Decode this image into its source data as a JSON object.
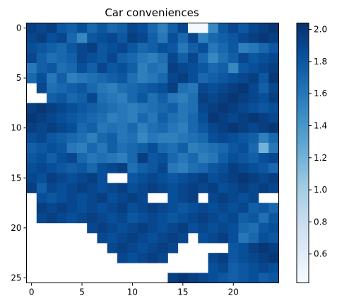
{
  "chart_data": {
    "type": "heatmap",
    "title": "Car conveniences",
    "xlabel": "",
    "ylabel": "",
    "rows": 26,
    "cols": 25,
    "x_ticks": [
      0,
      5,
      10,
      15,
      20
    ],
    "y_ticks": [
      0,
      5,
      10,
      15,
      20,
      25
    ],
    "colorbar": {
      "min": 0.42,
      "max": 2.04,
      "ticks": [
        0.6,
        0.8,
        1.0,
        1.2,
        1.4,
        1.6,
        1.8,
        2.0
      ],
      "tick_labels": [
        "0.6",
        "0.8",
        "1.0",
        "1.2",
        "1.4",
        "1.6",
        "1.8",
        "2.0"
      ],
      "colormap": "Blues",
      "low_color": "#f7fbff",
      "high_color": "#08306b"
    },
    "missing_value_color": "#ffffff",
    "grid": false,
    "values": [
      [
        1.95,
        1.9,
        1.95,
        1.8,
        1.75,
        1.85,
        1.7,
        1.8,
        1.7,
        1.75,
        1.9,
        1.85,
        1.7,
        1.55,
        1.75,
        1.9,
        0.45,
        0.45,
        1.5,
        1.8,
        1.9,
        1.8,
        1.9,
        1.95,
        2.0
      ],
      [
        1.9,
        1.95,
        1.85,
        1.9,
        1.7,
        1.5,
        1.8,
        1.85,
        1.9,
        1.8,
        1.95,
        1.9,
        1.75,
        1.6,
        1.85,
        1.7,
        1.9,
        1.55,
        1.7,
        1.75,
        1.8,
        1.9,
        1.95,
        2.0,
        1.95
      ],
      [
        1.85,
        1.8,
        1.75,
        1.7,
        1.8,
        1.9,
        1.95,
        1.8,
        1.85,
        1.9,
        1.8,
        1.7,
        1.75,
        1.85,
        1.8,
        1.6,
        1.75,
        1.85,
        1.6,
        1.7,
        1.8,
        1.55,
        1.6,
        1.7,
        1.8
      ],
      [
        1.9,
        1.75,
        1.65,
        1.7,
        1.75,
        1.9,
        1.85,
        1.8,
        1.9,
        1.75,
        1.7,
        1.6,
        1.55,
        1.65,
        1.9,
        1.75,
        1.9,
        1.7,
        1.5,
        1.65,
        1.75,
        1.9,
        1.8,
        1.85,
        1.9
      ],
      [
        1.6,
        1.75,
        1.8,
        1.65,
        1.7,
        1.85,
        1.75,
        1.9,
        1.8,
        1.85,
        1.75,
        1.55,
        1.65,
        1.6,
        1.95,
        1.9,
        1.85,
        1.8,
        1.7,
        1.75,
        1.5,
        1.8,
        1.85,
        1.9,
        1.95
      ],
      [
        1.7,
        1.85,
        1.6,
        1.75,
        1.55,
        1.6,
        1.65,
        1.7,
        1.75,
        1.8,
        1.65,
        1.55,
        1.6,
        1.7,
        1.9,
        1.95,
        1.85,
        1.7,
        1.75,
        1.8,
        1.85,
        1.9,
        1.95,
        1.8,
        2.0
      ],
      [
        null,
        1.9,
        1.65,
        1.7,
        1.75,
        1.8,
        1.7,
        1.6,
        1.55,
        1.65,
        1.7,
        1.75,
        1.8,
        1.85,
        1.95,
        1.65,
        1.6,
        1.9,
        1.85,
        1.9,
        1.95,
        2.0,
        1.9,
        1.75,
        1.9
      ],
      [
        null,
        null,
        1.75,
        1.8,
        1.7,
        1.75,
        1.9,
        1.65,
        1.6,
        1.55,
        1.7,
        1.8,
        1.65,
        1.75,
        1.6,
        1.55,
        1.65,
        1.95,
        1.9,
        1.95,
        2.0,
        1.95,
        1.9,
        1.85,
        1.95
      ],
      [
        1.95,
        2.0,
        1.95,
        1.9,
        1.85,
        1.8,
        1.75,
        1.7,
        1.65,
        1.6,
        1.55,
        1.6,
        1.65,
        1.7,
        1.75,
        1.6,
        1.65,
        1.9,
        1.95,
        2.0,
        1.95,
        1.9,
        1.85,
        1.8,
        1.85
      ],
      [
        2.0,
        1.95,
        1.9,
        1.85,
        1.8,
        1.75,
        1.7,
        1.65,
        1.55,
        1.6,
        1.55,
        1.7,
        1.6,
        1.75,
        1.65,
        1.6,
        1.7,
        1.85,
        2.0,
        1.95,
        1.9,
        1.95,
        2.0,
        1.95,
        1.9
      ],
      [
        1.95,
        1.9,
        1.95,
        1.9,
        1.85,
        1.7,
        1.75,
        1.6,
        1.65,
        1.6,
        1.7,
        1.55,
        1.65,
        1.7,
        1.6,
        1.55,
        1.7,
        1.8,
        1.9,
        1.95,
        2.0,
        1.95,
        1.9,
        1.95,
        2.0
      ],
      [
        1.85,
        1.9,
        1.8,
        1.75,
        1.7,
        1.65,
        1.55,
        1.7,
        1.75,
        1.6,
        1.65,
        1.5,
        1.6,
        1.55,
        1.55,
        1.6,
        1.65,
        1.7,
        1.85,
        1.9,
        1.85,
        1.8,
        1.75,
        1.55,
        1.7
      ],
      [
        1.75,
        1.8,
        1.85,
        1.8,
        1.6,
        1.55,
        1.7,
        1.6,
        1.75,
        1.65,
        1.7,
        1.75,
        1.85,
        1.7,
        1.65,
        1.75,
        1.55,
        1.6,
        1.65,
        1.7,
        1.8,
        1.85,
        1.7,
        1.2,
        1.6
      ],
      [
        1.8,
        1.85,
        1.75,
        1.85,
        1.9,
        1.7,
        1.6,
        1.65,
        1.6,
        1.55,
        1.7,
        1.95,
        1.8,
        1.85,
        1.7,
        1.6,
        1.7,
        1.55,
        1.6,
        1.75,
        1.85,
        1.8,
        1.75,
        1.85,
        1.9
      ],
      [
        1.85,
        1.9,
        1.85,
        1.8,
        1.75,
        1.8,
        1.7,
        1.85,
        1.9,
        1.95,
        1.65,
        1.75,
        1.8,
        1.9,
        1.6,
        1.55,
        1.65,
        1.7,
        1.8,
        1.85,
        1.95,
        1.9,
        1.85,
        1.8,
        1.7
      ],
      [
        1.9,
        1.85,
        1.95,
        1.9,
        1.85,
        1.9,
        1.95,
        1.85,
        null,
        null,
        1.8,
        1.85,
        1.9,
        1.85,
        1.8,
        1.85,
        1.9,
        1.95,
        1.85,
        1.9,
        1.95,
        2.0,
        1.95,
        1.9,
        1.95
      ],
      [
        1.95,
        1.75,
        1.9,
        1.85,
        1.9,
        1.95,
        1.9,
        1.85,
        1.9,
        1.95,
        1.85,
        1.9,
        1.95,
        1.9,
        1.85,
        1.9,
        1.95,
        1.9,
        1.95,
        1.85,
        1.9,
        1.95,
        1.9,
        1.95,
        1.9
      ],
      [
        null,
        1.85,
        1.8,
        1.85,
        1.9,
        1.85,
        1.9,
        1.95,
        1.85,
        1.9,
        1.95,
        1.9,
        null,
        null,
        1.85,
        1.9,
        1.95,
        null,
        1.9,
        1.95,
        1.9,
        1.85,
        1.9,
        null,
        null
      ],
      [
        null,
        1.95,
        1.9,
        1.95,
        1.9,
        1.85,
        1.9,
        1.85,
        1.9,
        1.95,
        1.85,
        1.9,
        1.95,
        1.9,
        1.85,
        1.8,
        1.85,
        1.9,
        1.85,
        1.9,
        1.85,
        1.9,
        1.75,
        1.8,
        1.7
      ],
      [
        null,
        1.9,
        1.95,
        1.9,
        1.85,
        1.9,
        1.95,
        1.9,
        1.85,
        1.9,
        1.8,
        1.85,
        1.9,
        1.85,
        1.8,
        1.85,
        1.9,
        1.95,
        1.9,
        1.85,
        1.9,
        1.75,
        1.8,
        1.65,
        1.8
      ],
      [
        null,
        null,
        null,
        null,
        null,
        null,
        1.9,
        1.95,
        1.9,
        1.85,
        1.9,
        1.95,
        1.9,
        1.85,
        1.9,
        1.95,
        1.85,
        1.9,
        1.85,
        1.9,
        1.85,
        1.7,
        1.65,
        1.8,
        1.85
      ],
      [
        null,
        null,
        null,
        null,
        null,
        null,
        null,
        1.9,
        1.85,
        1.9,
        1.95,
        1.9,
        1.85,
        1.9,
        1.95,
        1.9,
        null,
        1.85,
        1.9,
        1.95,
        1.85,
        1.6,
        1.7,
        1.85,
        1.8
      ],
      [
        null,
        null,
        null,
        null,
        null,
        null,
        null,
        null,
        1.9,
        1.95,
        1.9,
        1.85,
        1.9,
        1.95,
        1.9,
        null,
        null,
        null,
        null,
        null,
        1.8,
        1.85,
        1.95,
        2.0,
        1.95
      ],
      [
        null,
        null,
        null,
        null,
        null,
        null,
        null,
        null,
        null,
        1.9,
        1.85,
        1.9,
        1.95,
        1.9,
        null,
        null,
        null,
        null,
        1.9,
        1.95,
        1.8,
        1.85,
        1.9,
        1.95,
        2.0
      ],
      [
        null,
        null,
        null,
        null,
        null,
        null,
        null,
        null,
        null,
        null,
        null,
        null,
        null,
        null,
        null,
        null,
        null,
        null,
        1.85,
        1.9,
        1.75,
        1.8,
        1.85,
        1.9,
        1.85
      ],
      [
        null,
        null,
        null,
        null,
        null,
        null,
        null,
        null,
        null,
        null,
        null,
        null,
        null,
        null,
        1.95,
        2.0,
        1.95,
        1.9,
        1.85,
        1.8,
        1.75,
        1.8,
        1.85,
        1.75,
        1.8
      ]
    ]
  }
}
